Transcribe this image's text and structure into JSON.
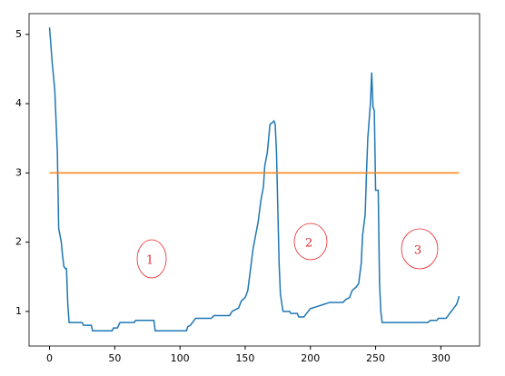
{
  "chart_data": {
    "type": "line",
    "x": [
      0,
      2,
      4,
      6,
      7,
      9,
      10,
      11,
      12,
      13,
      14,
      15,
      25,
      26,
      32,
      33,
      48,
      49,
      52,
      53,
      54,
      65,
      66,
      80,
      81,
      105,
      106,
      108,
      110,
      112,
      124,
      126,
      138,
      140,
      145,
      147,
      150,
      152,
      154,
      156,
      158,
      160,
      162,
      164,
      165,
      167,
      169,
      171,
      172,
      173,
      174,
      175,
      176,
      177,
      179,
      184,
      185,
      190,
      191,
      195,
      197,
      200,
      205,
      210,
      215,
      225,
      227,
      230,
      232,
      235,
      237,
      239,
      240,
      242,
      243,
      244,
      246,
      247,
      248,
      249,
      250,
      252,
      253,
      254,
      255,
      290,
      292,
      297,
      298,
      304,
      306,
      308,
      310,
      312,
      313,
      314
    ],
    "series": [
      {
        "color": "#1f77b4",
        "values": [
          5.1,
          4.6,
          4.2,
          3.3,
          2.2,
          2.0,
          1.8,
          1.65,
          1.62,
          1.62,
          1.1,
          0.84,
          0.84,
          0.8,
          0.8,
          0.72,
          0.72,
          0.76,
          0.76,
          0.8,
          0.84,
          0.84,
          0.87,
          0.87,
          0.72,
          0.72,
          0.78,
          0.8,
          0.85,
          0.9,
          0.9,
          0.94,
          0.94,
          1.0,
          1.05,
          1.15,
          1.2,
          1.3,
          1.6,
          1.9,
          2.1,
          2.3,
          2.6,
          2.8,
          3.1,
          3.3,
          3.7,
          3.73,
          3.75,
          3.7,
          3.3,
          2.5,
          1.7,
          1.25,
          1.0,
          1.0,
          0.97,
          0.97,
          0.92,
          0.92,
          0.97,
          1.04,
          1.07,
          1.1,
          1.13,
          1.13,
          1.17,
          1.2,
          1.3,
          1.35,
          1.4,
          1.7,
          2.1,
          2.4,
          3.0,
          3.5,
          4.0,
          4.45,
          3.95,
          3.9,
          2.75,
          2.75,
          1.4,
          1.0,
          0.84,
          0.84,
          0.87,
          0.87,
          0.9,
          0.9,
          0.95,
          1.0,
          1.05,
          1.1,
          1.15,
          1.22
        ]
      },
      {
        "color": "#ff7f0e",
        "x": [
          0,
          314
        ],
        "values": [
          3,
          3
        ]
      }
    ],
    "annotations": [
      "1",
      "2",
      "3"
    ],
    "xlim": [
      -15.7,
      329.7
    ],
    "ylim": [
      0.5,
      5.3
    ],
    "xticks": [
      0,
      50,
      100,
      150,
      200,
      250,
      300
    ],
    "yticks": [
      1,
      2,
      3,
      4,
      5
    ]
  }
}
